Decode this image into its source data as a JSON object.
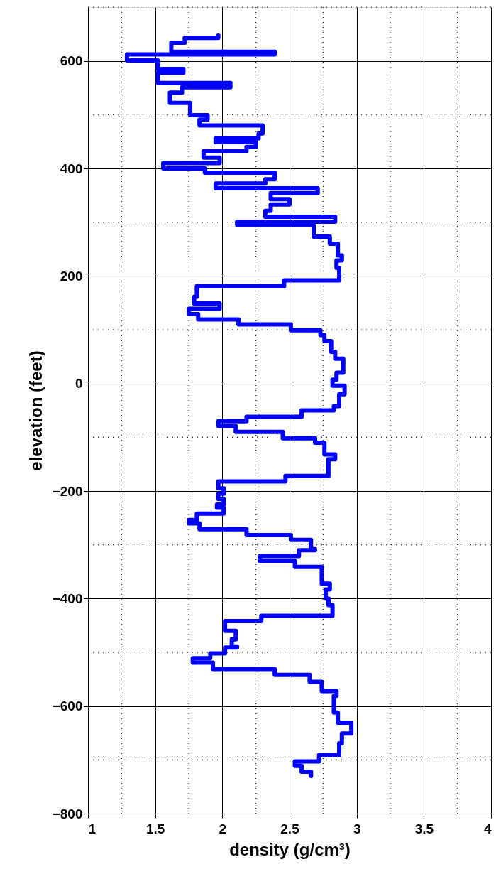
{
  "chart_data": {
    "type": "line",
    "xlabel": "density (g/cm³)",
    "ylabel": "elevation (feet)",
    "xlim": [
      1,
      4
    ],
    "xticks": [
      1,
      1.5,
      2,
      2.5,
      3,
      3.5,
      4
    ],
    "ylim": [
      -800,
      700
    ],
    "yticks": [
      -800,
      -600,
      -400,
      -200,
      0,
      200,
      400,
      600
    ],
    "grid": true,
    "line_style": "solid",
    "series": [
      {
        "color": "#0000ff",
        "x": [
          1.97,
          1.97,
          1.72,
          1.72,
          1.62,
          1.62,
          2.39,
          2.39,
          1.29,
          1.29,
          1.52,
          1.52,
          1.71,
          1.71,
          1.52,
          1.52,
          2.06,
          2.06,
          1.7,
          1.7,
          1.61,
          1.61,
          1.76,
          1.76,
          1.89,
          1.89,
          1.83,
          1.83,
          2.3,
          2.3,
          2.27,
          2.27,
          1.95,
          1.95,
          2.25,
          2.25,
          2.18,
          2.18,
          1.86,
          1.86,
          1.98,
          1.98,
          1.56,
          1.56,
          1.87,
          1.87,
          2.39,
          2.39,
          2.32,
          2.32,
          1.95,
          1.95,
          2.71,
          2.71,
          2.36,
          2.36,
          2.5,
          2.5,
          2.36,
          2.36,
          2.32,
          2.32,
          2.84,
          2.84,
          2.11,
          2.11,
          2.68,
          2.68,
          2.8,
          2.8,
          2.86,
          2.86,
          2.89,
          2.89,
          2.85,
          2.85,
          2.87,
          2.87,
          2.46,
          2.46,
          1.81,
          1.81,
          1.79,
          1.79,
          1.98,
          1.98,
          1.75,
          1.75,
          1.82,
          1.82,
          2.12,
          2.12,
          2.51,
          2.51,
          2.73,
          2.73,
          2.76,
          2.76,
          2.81,
          2.81,
          2.84,
          2.84,
          2.9,
          2.9,
          2.85,
          2.85,
          2.82,
          2.82,
          2.91,
          2.91,
          2.87,
          2.87,
          2.83,
          2.83,
          2.59,
          2.59,
          2.18,
          2.18,
          1.97,
          1.97,
          2.1,
          2.1,
          2.45,
          2.45,
          2.69,
          2.69,
          2.76,
          2.76,
          2.84,
          2.84,
          2.79,
          2.79,
          2.47,
          2.47,
          1.97,
          1.97,
          2.01,
          2.01,
          1.97,
          1.97,
          2.01,
          2.01,
          1.96,
          1.96,
          2.01,
          2.01,
          1.81,
          1.81,
          1.75,
          1.75,
          1.83,
          1.83,
          2.18,
          2.18,
          2.51,
          2.51,
          2.66,
          2.66,
          2.69,
          2.69,
          2.57,
          2.57,
          2.28,
          2.28,
          2.54,
          2.54,
          2.74,
          2.74,
          2.8,
          2.8,
          2.77,
          2.77,
          2.79,
          2.79,
          2.82,
          2.82,
          2.29,
          2.29,
          2.02,
          2.02,
          2.1,
          2.1,
          2.07,
          2.07,
          2.11,
          2.11,
          2.02,
          2.02,
          1.91,
          1.91,
          1.78,
          1.78,
          1.93,
          1.93,
          2.39,
          2.39,
          2.65,
          2.65,
          2.74,
          2.74,
          2.85,
          2.85,
          2.83,
          2.83,
          2.86,
          2.86,
          2.96,
          2.96,
          2.89,
          2.89,
          2.87,
          2.87,
          2.72,
          2.72,
          2.54,
          2.54,
          2.59,
          2.59,
          2.66,
          2.66
        ],
        "values": [
          647,
          643,
          643,
          634,
          634,
          617,
          617,
          612,
          612,
          601,
          601,
          585,
          585,
          578,
          578,
          559,
          559,
          551,
          551,
          541,
          541,
          522,
          522,
          499,
          499,
          491,
          491,
          480,
          480,
          465,
          465,
          456,
          456,
          449,
          449,
          440,
          440,
          432,
          432,
          420,
          420,
          410,
          410,
          400,
          400,
          392,
          392,
          380,
          380,
          372,
          372,
          363,
          363,
          354,
          354,
          343,
          343,
          333,
          333,
          321,
          321,
          310,
          310,
          301,
          301,
          295,
          295,
          273,
          273,
          260,
          260,
          238,
          238,
          229,
          229,
          215,
          215,
          192,
          192,
          181,
          181,
          161,
          161,
          149,
          149,
          139,
          139,
          129,
          129,
          119,
          119,
          110,
          110,
          99,
          99,
          90,
          90,
          79,
          79,
          59,
          59,
          46,
          46,
          20,
          20,
          7,
          7,
          -4,
          -4,
          -20,
          -20,
          -42,
          -42,
          -50,
          -50,
          -62,
          -62,
          -70,
          -70,
          -79,
          -79,
          -90,
          -90,
          -102,
          -102,
          -110,
          -110,
          -132,
          -132,
          -141,
          -141,
          -172,
          -172,
          -182,
          -182,
          -195,
          -195,
          -205,
          -205,
          -215,
          -215,
          -225,
          -225,
          -231,
          -231,
          -242,
          -242,
          -254,
          -254,
          -260,
          -260,
          -271,
          -271,
          -282,
          -282,
          -291,
          -291,
          -308,
          -308,
          -310,
          -310,
          -321,
          -321,
          -330,
          -330,
          -341,
          -341,
          -372,
          -372,
          -383,
          -383,
          -400,
          -400,
          -412,
          -412,
          -432,
          -432,
          -442,
          -442,
          -460,
          -460,
          -476,
          -476,
          -489,
          -489,
          -491,
          -491,
          -502,
          -502,
          -511,
          -511,
          -519,
          -519,
          -531,
          -531,
          -542,
          -542,
          -555,
          -555,
          -572,
          -572,
          -581,
          -581,
          -612,
          -612,
          -631,
          -631,
          -651,
          -651,
          -669,
          -669,
          -691,
          -691,
          -703,
          -703,
          -711,
          -711,
          -722,
          -722,
          -730
        ]
      }
    ]
  }
}
